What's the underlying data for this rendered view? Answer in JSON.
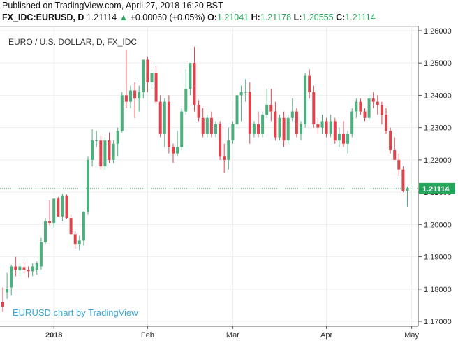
{
  "header": {
    "published": "Published on TradingView.com, April 27, 2018 16:20 BST",
    "symbol": "FX_IDC:EURUSD, D",
    "last": "1.21114",
    "arrow": "▲",
    "change": "+0.00060 (+0.05%)",
    "o_label": "O:",
    "o_value": "1.21041",
    "h_label": "H:",
    "h_value": "1.21178",
    "l_label": "L:",
    "l_value": "1.20555",
    "c_label": "C:",
    "c_value": "1.21114"
  },
  "watermark": "EURUSD chart by TradingView",
  "colors": {
    "up": "#4caf7d",
    "down": "#e0434c",
    "price_line": "#26a65b",
    "grid": "#eeeeee",
    "accent_text": "#3aa7d8"
  },
  "chart_data": {
    "type": "candlestick",
    "title": "EURO / U.S. DOLLAR, D, FX_IDC",
    "ylim": [
      1.1685,
      1.2615
    ],
    "y_ticks": [
      "1.26000",
      "1.25000",
      "1.24000",
      "1.23000",
      "1.22000",
      "1.21000",
      "1.20000",
      "1.19000",
      "1.18000",
      "1.17000"
    ],
    "x_labels": [
      "2018",
      "Feb",
      "Mar",
      "Apr",
      "May"
    ],
    "x_label_index": [
      12,
      34,
      54,
      76,
      96
    ],
    "last_price": 1.21114,
    "last_price_label": "1.21114",
    "grid": true,
    "candles": [
      {
        "o": 1.176,
        "h": 1.1805,
        "l": 1.173,
        "c": 1.1745
      },
      {
        "o": 1.179,
        "h": 1.185,
        "l": 1.177,
        "c": 1.18
      },
      {
        "o": 1.1805,
        "h": 1.1875,
        "l": 1.178,
        "c": 1.187
      },
      {
        "o": 1.187,
        "h": 1.19,
        "l": 1.184,
        "c": 1.186
      },
      {
        "o": 1.1858,
        "h": 1.188,
        "l": 1.184,
        "c": 1.187
      },
      {
        "o": 1.1868,
        "h": 1.1885,
        "l": 1.185,
        "c": 1.186
      },
      {
        "o": 1.186,
        "h": 1.187,
        "l": 1.1835,
        "c": 1.1855
      },
      {
        "o": 1.1855,
        "h": 1.188,
        "l": 1.184,
        "c": 1.187
      },
      {
        "o": 1.186,
        "h": 1.1885,
        "l": 1.1845,
        "c": 1.188
      },
      {
        "o": 1.187,
        "h": 1.196,
        "l": 1.186,
        "c": 1.1945
      },
      {
        "o": 1.1945,
        "h": 1.202,
        "l": 1.194,
        "c": 1.201
      },
      {
        "o": 1.201,
        "h": 1.2075,
        "l": 1.1998,
        "c": 1.2005
      },
      {
        "o": 1.2005,
        "h": 1.208,
        "l": 1.199,
        "c": 1.208
      },
      {
        "o": 1.208,
        "h": 1.2085,
        "l": 1.2025,
        "c": 1.2025
      },
      {
        "o": 1.2025,
        "h": 1.2095,
        "l": 1.201,
        "c": 1.209
      },
      {
        "o": 1.209,
        "h": 1.2093,
        "l": 1.2018,
        "c": 1.202
      },
      {
        "o": 1.202,
        "h": 1.203,
        "l": 1.197,
        "c": 1.197
      },
      {
        "o": 1.197,
        "h": 1.198,
        "l": 1.1925,
        "c": 1.194
      },
      {
        "o": 1.194,
        "h": 1.1965,
        "l": 1.192,
        "c": 1.195
      },
      {
        "o": 1.195,
        "h": 1.204,
        "l": 1.1935,
        "c": 1.204
      },
      {
        "o": 1.204,
        "h": 1.221,
        "l": 1.203,
        "c": 1.22
      },
      {
        "o": 1.22,
        "h": 1.2295,
        "l": 1.218,
        "c": 1.226
      },
      {
        "o": 1.226,
        "h": 1.229,
        "l": 1.224,
        "c": 1.226
      },
      {
        "o": 1.226,
        "h": 1.2275,
        "l": 1.217,
        "c": 1.218
      },
      {
        "o": 1.218,
        "h": 1.227,
        "l": 1.217,
        "c": 1.226
      },
      {
        "o": 1.226,
        "h": 1.2285,
        "l": 1.219,
        "c": 1.22
      },
      {
        "o": 1.22,
        "h": 1.226,
        "l": 1.219,
        "c": 1.225
      },
      {
        "o": 1.225,
        "h": 1.23,
        "l": 1.221,
        "c": 1.229
      },
      {
        "o": 1.229,
        "h": 1.241,
        "l": 1.2285,
        "c": 1.24
      },
      {
        "o": 1.24,
        "h": 1.254,
        "l": 1.236,
        "c": 1.238
      },
      {
        "o": 1.238,
        "h": 1.243,
        "l": 1.236,
        "c": 1.2415
      },
      {
        "o": 1.2415,
        "h": 1.244,
        "l": 1.233,
        "c": 1.239
      },
      {
        "o": 1.239,
        "h": 1.243,
        "l": 1.235,
        "c": 1.241
      },
      {
        "o": 1.241,
        "h": 1.251,
        "l": 1.239,
        "c": 1.251
      },
      {
        "o": 1.251,
        "h": 1.252,
        "l": 1.241,
        "c": 1.244
      },
      {
        "o": 1.244,
        "h": 1.248,
        "l": 1.242,
        "c": 1.247
      },
      {
        "o": 1.247,
        "h": 1.249,
        "l": 1.237,
        "c": 1.238
      },
      {
        "o": 1.238,
        "h": 1.24,
        "l": 1.227,
        "c": 1.228
      },
      {
        "o": 1.228,
        "h": 1.239,
        "l": 1.224,
        "c": 1.238
      },
      {
        "o": 1.238,
        "h": 1.24,
        "l": 1.222,
        "c": 1.224
      },
      {
        "o": 1.224,
        "h": 1.225,
        "l": 1.219,
        "c": 1.222
      },
      {
        "o": 1.222,
        "h": 1.229,
        "l": 1.221,
        "c": 1.224
      },
      {
        "o": 1.224,
        "h": 1.236,
        "l": 1.223,
        "c": 1.235
      },
      {
        "o": 1.235,
        "h": 1.248,
        "l": 1.234,
        "c": 1.242
      },
      {
        "o": 1.242,
        "h": 1.25,
        "l": 1.24,
        "c": 1.25
      },
      {
        "o": 1.25,
        "h": 1.255,
        "l": 1.235,
        "c": 1.237
      },
      {
        "o": 1.237,
        "h": 1.2385,
        "l": 1.232,
        "c": 1.233
      },
      {
        "o": 1.233,
        "h": 1.236,
        "l": 1.227,
        "c": 1.228
      },
      {
        "o": 1.228,
        "h": 1.234,
        "l": 1.227,
        "c": 1.233
      },
      {
        "o": 1.233,
        "h": 1.235,
        "l": 1.227,
        "c": 1.228
      },
      {
        "o": 1.228,
        "h": 1.232,
        "l": 1.227,
        "c": 1.231
      },
      {
        "o": 1.231,
        "h": 1.232,
        "l": 1.22,
        "c": 1.221
      },
      {
        "o": 1.221,
        "h": 1.225,
        "l": 1.216,
        "c": 1.22
      },
      {
        "o": 1.22,
        "h": 1.23,
        "l": 1.217,
        "c": 1.226
      },
      {
        "o": 1.226,
        "h": 1.232,
        "l": 1.225,
        "c": 1.231
      },
      {
        "o": 1.231,
        "h": 1.24,
        "l": 1.23,
        "c": 1.24
      },
      {
        "o": 1.24,
        "h": 1.243,
        "l": 1.232,
        "c": 1.241
      },
      {
        "o": 1.241,
        "h": 1.245,
        "l": 1.238,
        "c": 1.241
      },
      {
        "o": 1.241,
        "h": 1.244,
        "l": 1.225,
        "c": 1.228
      },
      {
        "o": 1.228,
        "h": 1.232,
        "l": 1.227,
        "c": 1.231
      },
      {
        "o": 1.231,
        "h": 1.235,
        "l": 1.227,
        "c": 1.228
      },
      {
        "o": 1.228,
        "h": 1.235,
        "l": 1.227,
        "c": 1.234
      },
      {
        "o": 1.234,
        "h": 1.242,
        "l": 1.233,
        "c": 1.237
      },
      {
        "o": 1.237,
        "h": 1.242,
        "l": 1.232,
        "c": 1.235
      },
      {
        "o": 1.235,
        "h": 1.238,
        "l": 1.226,
        "c": 1.227
      },
      {
        "o": 1.227,
        "h": 1.234,
        "l": 1.226,
        "c": 1.233
      },
      {
        "o": 1.233,
        "h": 1.235,
        "l": 1.224,
        "c": 1.226
      },
      {
        "o": 1.226,
        "h": 1.234,
        "l": 1.225,
        "c": 1.233
      },
      {
        "o": 1.233,
        "h": 1.239,
        "l": 1.232,
        "c": 1.235
      },
      {
        "o": 1.235,
        "h": 1.236,
        "l": 1.227,
        "c": 1.228
      },
      {
        "o": 1.228,
        "h": 1.232,
        "l": 1.226,
        "c": 1.231
      },
      {
        "o": 1.231,
        "h": 1.247,
        "l": 1.23,
        "c": 1.246
      },
      {
        "o": 1.246,
        "h": 1.248,
        "l": 1.239,
        "c": 1.241
      },
      {
        "o": 1.241,
        "h": 1.243,
        "l": 1.23,
        "c": 1.231
      },
      {
        "o": 1.231,
        "h": 1.233,
        "l": 1.228,
        "c": 1.23
      },
      {
        "o": 1.23,
        "h": 1.234,
        "l": 1.228,
        "c": 1.232
      },
      {
        "o": 1.232,
        "h": 1.233,
        "l": 1.227,
        "c": 1.228
      },
      {
        "o": 1.228,
        "h": 1.234,
        "l": 1.227,
        "c": 1.232
      },
      {
        "o": 1.232,
        "h": 1.233,
        "l": 1.225,
        "c": 1.226
      },
      {
        "o": 1.226,
        "h": 1.23,
        "l": 1.224,
        "c": 1.228
      },
      {
        "o": 1.228,
        "h": 1.232,
        "l": 1.224,
        "c": 1.225
      },
      {
        "o": 1.225,
        "h": 1.229,
        "l": 1.222,
        "c": 1.228
      },
      {
        "o": 1.228,
        "h": 1.236,
        "l": 1.227,
        "c": 1.235
      },
      {
        "o": 1.235,
        "h": 1.239,
        "l": 1.233,
        "c": 1.238
      },
      {
        "o": 1.238,
        "h": 1.239,
        "l": 1.234,
        "c": 1.235
      },
      {
        "o": 1.235,
        "h": 1.236,
        "l": 1.232,
        "c": 1.233
      },
      {
        "o": 1.233,
        "h": 1.24,
        "l": 1.232,
        "c": 1.239
      },
      {
        "o": 1.239,
        "h": 1.241,
        "l": 1.236,
        "c": 1.238
      },
      {
        "o": 1.238,
        "h": 1.24,
        "l": 1.234,
        "c": 1.237
      },
      {
        "o": 1.237,
        "h": 1.238,
        "l": 1.231,
        "c": 1.234
      },
      {
        "o": 1.234,
        "h": 1.236,
        "l": 1.228,
        "c": 1.229
      },
      {
        "o": 1.229,
        "h": 1.23,
        "l": 1.222,
        "c": 1.223
      },
      {
        "o": 1.223,
        "h": 1.227,
        "l": 1.22,
        "c": 1.22
      },
      {
        "o": 1.22,
        "h": 1.222,
        "l": 1.215,
        "c": 1.217
      },
      {
        "o": 1.217,
        "h": 1.218,
        "l": 1.21,
        "c": 1.2104
      },
      {
        "o": 1.21041,
        "h": 1.21178,
        "l": 1.20555,
        "c": 1.21114
      }
    ]
  }
}
